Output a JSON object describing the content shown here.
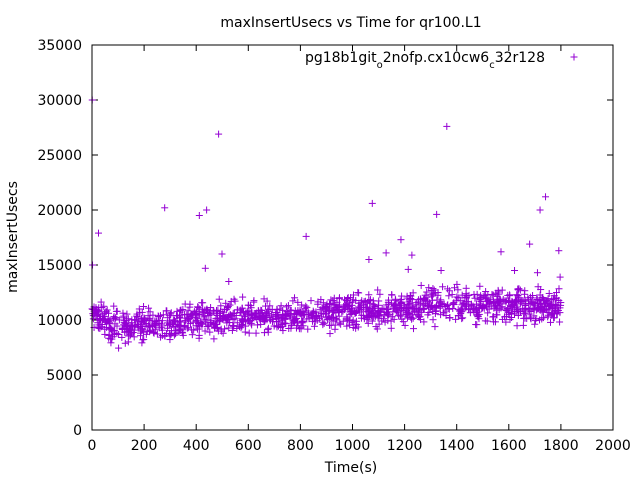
{
  "chart_data": {
    "type": "scatter",
    "title": "maxInsertUsecs vs Time for qr100.L1",
    "xlabel": "Time(s)",
    "ylabel": "maxInsertUsecs",
    "xlim": [
      0,
      2000
    ],
    "ylim": [
      0,
      35000
    ],
    "xticks": [
      0,
      200,
      400,
      600,
      800,
      1000,
      1200,
      1400,
      1600,
      1800,
      2000
    ],
    "yticks": [
      0,
      5000,
      10000,
      15000,
      20000,
      25000,
      30000,
      35000
    ],
    "grid": false,
    "legend_position": "top-right",
    "marker": "plus",
    "color": "#9400d3",
    "series": [
      {
        "name_parts": [
          "pg18b1git",
          "o",
          "2nofp.cx10cw6",
          "c",
          "32r128"
        ],
        "outliers": [
          [
            1,
            30000
          ],
          [
            2,
            15000
          ],
          [
            25,
            17900
          ],
          [
            279,
            20200
          ],
          [
            412,
            19500
          ],
          [
            440,
            20000
          ],
          [
            435,
            14700
          ],
          [
            486,
            26900
          ],
          [
            499,
            16000
          ],
          [
            525,
            13500
          ],
          [
            822,
            17600
          ],
          [
            1076,
            20600
          ],
          [
            1063,
            15500
          ],
          [
            1129,
            16100
          ],
          [
            1186,
            17300
          ],
          [
            1214,
            14600
          ],
          [
            1228,
            15900
          ],
          [
            1323,
            19600
          ],
          [
            1362,
            27600
          ],
          [
            1340,
            14500
          ],
          [
            1570,
            16200
          ],
          [
            1622,
            14500
          ],
          [
            1680,
            16900
          ],
          [
            1720,
            20000
          ],
          [
            1741,
            21200
          ],
          [
            1792,
            16300
          ],
          [
            1797,
            13900
          ],
          [
            1710,
            14300
          ]
        ],
        "trend": [
          [
            0,
            11000
          ],
          [
            50,
            9600
          ],
          [
            100,
            9200
          ],
          [
            150,
            9400
          ],
          [
            200,
            9500
          ],
          [
            300,
            9700
          ],
          [
            400,
            10000
          ],
          [
            500,
            10200
          ],
          [
            600,
            10300
          ],
          [
            700,
            10200
          ],
          [
            800,
            10300
          ],
          [
            900,
            10600
          ],
          [
            1000,
            10900
          ],
          [
            1100,
            11000
          ],
          [
            1200,
            11000
          ],
          [
            1300,
            11400
          ],
          [
            1400,
            11600
          ],
          [
            1500,
            11300
          ],
          [
            1600,
            11500
          ],
          [
            1700,
            11200
          ],
          [
            1800,
            11100
          ]
        ],
        "bulk_x_range": [
          0,
          1800
        ],
        "bulk_count": 1400,
        "bulk_spread": 1100
      }
    ]
  }
}
